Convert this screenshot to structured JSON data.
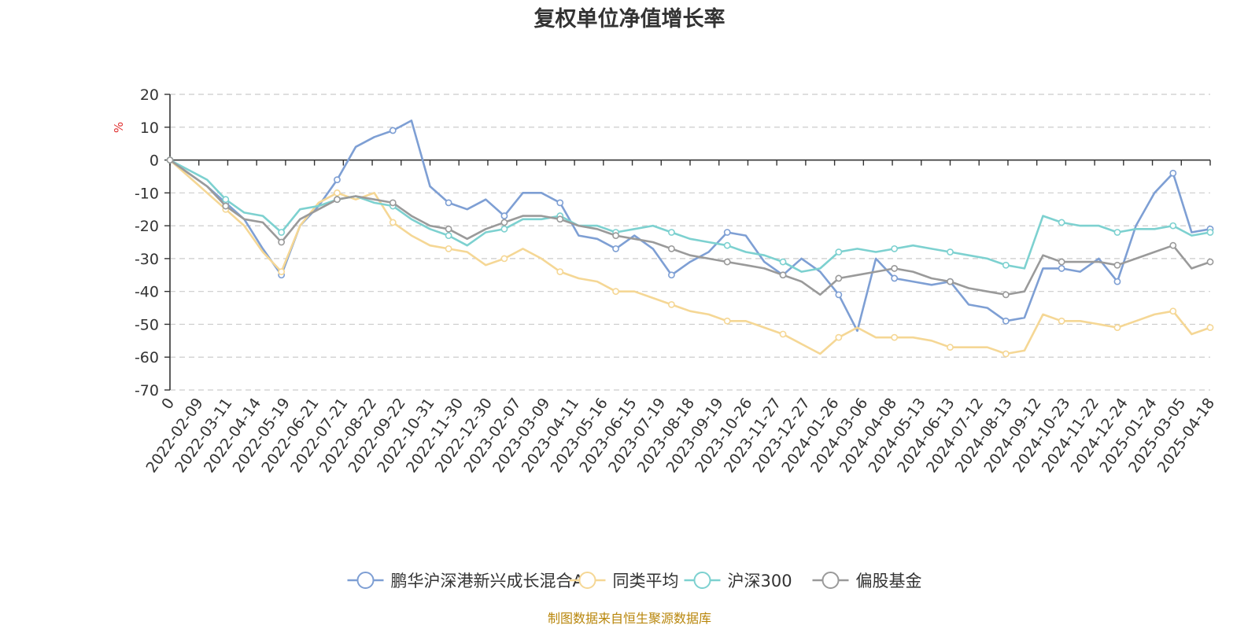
{
  "chart_data": {
    "type": "line",
    "title": "复权单位净值增长率",
    "ylabel": "%",
    "ylim": [
      -70,
      20
    ],
    "yticks": [
      20,
      10,
      0,
      -10,
      -20,
      -30,
      -40,
      -50,
      -60,
      -70
    ],
    "xtick_labels": [
      "0",
      "2022-02-09",
      "2022-03-11",
      "2022-04-14",
      "2022-05-19",
      "2022-06-21",
      "2022-07-21",
      "2022-08-22",
      "2022-09-22",
      "2022-10-31",
      "2022-11-30",
      "2022-12-30",
      "2023-02-07",
      "2023-03-09",
      "2023-04-11",
      "2023-05-16",
      "2023-06-15",
      "2023-07-19",
      "2023-08-18",
      "2023-09-19",
      "2023-10-26",
      "2023-11-27",
      "2023-12-27",
      "2024-01-26",
      "2024-03-06",
      "2024-04-08",
      "2024-05-13",
      "2024-06-13",
      "2024-07-12",
      "2024-08-13",
      "2024-09-12",
      "2024-10-23",
      "2024-11-22",
      "2024-12-24",
      "2025-01-24",
      "2025-03-05",
      "2025-04-18"
    ],
    "grid": true,
    "legend_position": "bottom",
    "series": [
      {
        "name": "鹏华沪深港新兴成长混合A",
        "color": "#7e9fd4",
        "values": [
          0,
          -4,
          -8,
          -13,
          -18,
          -27,
          -35,
          -20,
          -14,
          -6,
          4,
          7,
          9,
          12,
          -8,
          -13,
          -15,
          -12,
          -17,
          -10,
          -10,
          -13,
          -23,
          -24,
          -27,
          -23,
          -27,
          -35,
          -31,
          -28,
          -22,
          -23,
          -31,
          -35,
          -30,
          -34,
          -41,
          -52,
          -30,
          -36,
          -37,
          -38,
          -37,
          -44,
          -45,
          -49,
          -48,
          -33,
          -33,
          -34,
          -30,
          -37,
          -20,
          -10,
          -4,
          -22,
          -21
        ]
      },
      {
        "name": "同类平均",
        "color": "#f5d795",
        "values": [
          0,
          -5,
          -10,
          -15,
          -20,
          -28,
          -34,
          -20,
          -13,
          -10,
          -12,
          -10,
          -19,
          -23,
          -26,
          -27,
          -28,
          -32,
          -30,
          -27,
          -30,
          -34,
          -36,
          -37,
          -40,
          -40,
          -42,
          -44,
          -46,
          -47,
          -49,
          -49,
          -51,
          -53,
          -56,
          -59,
          -54,
          -51,
          -54,
          -54,
          -54,
          -55,
          -57,
          -57,
          -57,
          -59,
          -58,
          -47,
          -49,
          -49,
          -50,
          -51,
          -49,
          -47,
          -46,
          -53,
          -51
        ]
      },
      {
        "name": "沪深300",
        "color": "#7dd1d0",
        "values": [
          0,
          -3,
          -6,
          -12,
          -16,
          -17,
          -22,
          -15,
          -14,
          -12,
          -11,
          -13,
          -14,
          -18,
          -21,
          -23,
          -26,
          -22,
          -21,
          -18,
          -18,
          -17,
          -20,
          -20,
          -22,
          -21,
          -20,
          -22,
          -24,
          -25,
          -26,
          -28,
          -29,
          -31,
          -34,
          -33,
          -28,
          -27,
          -28,
          -27,
          -26,
          -27,
          -28,
          -29,
          -30,
          -32,
          -33,
          -17,
          -19,
          -20,
          -20,
          -22,
          -21,
          -21,
          -20,
          -23,
          -22
        ]
      },
      {
        "name": "偏股基金",
        "color": "#9a9a9a",
        "values": [
          0,
          -4,
          -8,
          -14,
          -18,
          -19,
          -25,
          -18,
          -15,
          -12,
          -11,
          -12,
          -13,
          -17,
          -20,
          -21,
          -24,
          -21,
          -19,
          -17,
          -17,
          -18,
          -20,
          -21,
          -23,
          -24,
          -25,
          -27,
          -29,
          -30,
          -31,
          -32,
          -33,
          -35,
          -37,
          -41,
          -36,
          -35,
          -34,
          -33,
          -34,
          -36,
          -37,
          -39,
          -40,
          -41,
          -40,
          -29,
          -31,
          -31,
          -31,
          -32,
          -30,
          -28,
          -26,
          -33,
          -31
        ]
      }
    ]
  },
  "legend": {
    "items": [
      {
        "label": "鹏华沪深港新兴成长混合A",
        "color": "#7e9fd4"
      },
      {
        "label": "同类平均",
        "color": "#f5d795"
      },
      {
        "label": "沪深300",
        "color": "#7dd1d0"
      },
      {
        "label": "偏股基金",
        "color": "#9a9a9a"
      }
    ]
  },
  "footer": {
    "source": "制图数据来自恒生聚源数据库",
    "source_color": "#b8860b"
  },
  "unit_color": "#e03030",
  "axis_color": "#333333",
  "grid_color": "#cccccc"
}
